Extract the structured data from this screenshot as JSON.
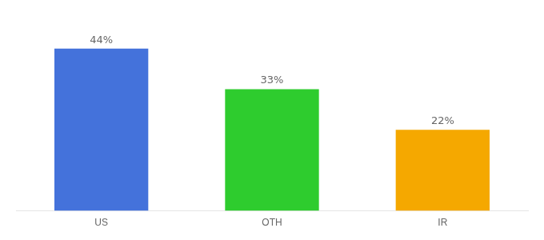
{
  "chart_data": {
    "type": "bar",
    "categories": [
      "US",
      "OTH",
      "IR"
    ],
    "values": [
      44,
      33,
      22
    ],
    "value_labels": [
      "44%",
      "33%",
      "22%"
    ],
    "colors": [
      "#4472db",
      "#2ecc2e",
      "#f5a800"
    ],
    "ylim": [
      0,
      52
    ],
    "grid": false,
    "data_labels": true,
    "tick_labels": "x"
  }
}
